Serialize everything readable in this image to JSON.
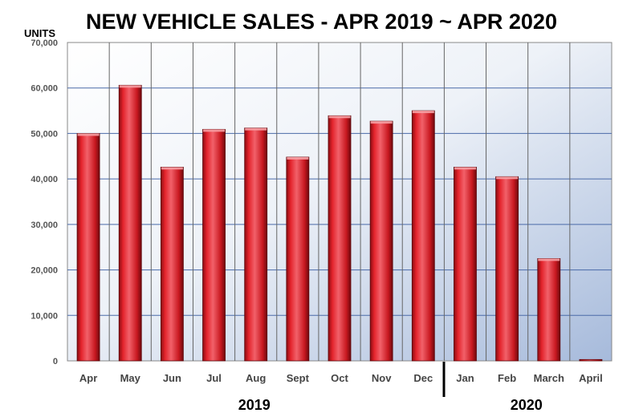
{
  "chart_data": {
    "type": "bar",
    "title": "NEW VEHICLE SALES - APR 2019 ~ APR 2020",
    "ylabel": "UNITS",
    "xlabel": "",
    "categories": [
      "Apr",
      "May",
      "Jun",
      "Jul",
      "Aug",
      "Sept",
      "Oct",
      "Nov",
      "Dec",
      "Jan",
      "Feb",
      "March",
      "April"
    ],
    "values": [
      50000,
      60600,
      42600,
      50900,
      51200,
      44800,
      53900,
      52700,
      55000,
      42600,
      40500,
      22500,
      300
    ],
    "ylim": [
      0,
      70000
    ],
    "yticks": [
      0,
      10000,
      20000,
      30000,
      40000,
      50000,
      60000,
      70000
    ],
    "ytick_labels": [
      "0",
      "10,000",
      "20,000",
      "30,000",
      "40,000",
      "50,000",
      "60,000",
      "70,000"
    ],
    "year_groups": [
      {
        "label": "2019",
        "from": 0,
        "to": 8
      },
      {
        "label": "2020",
        "from": 9,
        "to": 12
      }
    ],
    "grid": true,
    "colors": {
      "bar": "#e0202a",
      "bar_dark": "#7a0a10",
      "grid": "#4a6aa8",
      "plot_top": "#ffffff",
      "plot_bottom": "#a9bcd8"
    }
  }
}
